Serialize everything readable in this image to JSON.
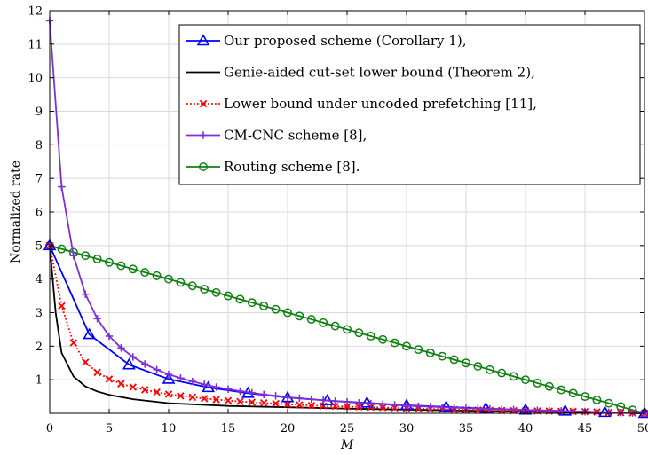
{
  "chart_data": {
    "type": "line",
    "title": "",
    "xlabel": "M",
    "ylabel": "Normalized rate",
    "xlim": [
      0,
      50
    ],
    "ylim": [
      0,
      12
    ],
    "xticks": [
      0,
      5,
      10,
      15,
      20,
      25,
      30,
      35,
      40,
      45,
      50
    ],
    "yticks": [
      1,
      2,
      3,
      4,
      5,
      6,
      7,
      8,
      9,
      10,
      11,
      12
    ],
    "grid": true,
    "legend_position": "top-right",
    "series": [
      {
        "name": "Our proposed scheme (Corollary 1),",
        "color": "#0000ff",
        "line_style": "solid",
        "marker": "triangle",
        "x": [
          0,
          3.33,
          6.67,
          10,
          13.33,
          16.67,
          20,
          23.33,
          26.67,
          30,
          33.33,
          36.67,
          40,
          43.33,
          46.67,
          50
        ],
        "y": [
          5.0,
          2.35,
          1.45,
          1.02,
          0.77,
          0.6,
          0.47,
          0.38,
          0.31,
          0.24,
          0.19,
          0.14,
          0.1,
          0.07,
          0.03,
          0.0
        ]
      },
      {
        "name": "Genie-aided cut-set lower bound (Theorem 2),",
        "color": "#000000",
        "line_style": "solid",
        "marker": "none",
        "x": [
          0,
          0.5,
          1,
          2,
          3,
          4,
          5,
          7,
          10,
          15,
          20,
          25,
          30,
          35,
          40,
          45,
          50
        ],
        "y": [
          5.0,
          3.0,
          1.8,
          1.1,
          0.8,
          0.65,
          0.55,
          0.42,
          0.3,
          0.22,
          0.18,
          0.14,
          0.11,
          0.08,
          0.05,
          0.03,
          0.0
        ]
      },
      {
        "name": "Lower bound under uncoded prefetching [11],",
        "color": "#ff0000",
        "line_style": "dotted",
        "marker": "x",
        "x": [
          0,
          1,
          2,
          3,
          4,
          5,
          6,
          7,
          8,
          9,
          10,
          11,
          12,
          13,
          14,
          15,
          16,
          17,
          18,
          19,
          20,
          21,
          22,
          23,
          24,
          25,
          26,
          27,
          28,
          29,
          30,
          31,
          32,
          33,
          34,
          35,
          36,
          37,
          38,
          39,
          40,
          41,
          42,
          43,
          44,
          45,
          46,
          47,
          48,
          49,
          50
        ],
        "y": [
          5.0,
          3.2,
          2.1,
          1.52,
          1.22,
          1.02,
          0.88,
          0.78,
          0.7,
          0.63,
          0.57,
          0.52,
          0.48,
          0.44,
          0.41,
          0.38,
          0.35,
          0.33,
          0.31,
          0.29,
          0.27,
          0.25,
          0.23,
          0.22,
          0.21,
          0.2,
          0.19,
          0.18,
          0.17,
          0.16,
          0.15,
          0.14,
          0.13,
          0.12,
          0.11,
          0.1,
          0.095,
          0.09,
          0.085,
          0.08,
          0.075,
          0.07,
          0.065,
          0.06,
          0.055,
          0.05,
          0.04,
          0.03,
          0.02,
          0.01,
          0.0
        ]
      },
      {
        "name": "CM-CNC scheme [8],",
        "color": "#7e2fd8",
        "line_style": "solid",
        "marker": "plus",
        "x": [
          0,
          1,
          2,
          3,
          4,
          5,
          6,
          7,
          8,
          9,
          10,
          11,
          12,
          13,
          14,
          15,
          16,
          17,
          18,
          19,
          20,
          21,
          22,
          23,
          24,
          25,
          26,
          27,
          28,
          29,
          30,
          31,
          32,
          33,
          34,
          35,
          36,
          37,
          38,
          39,
          40,
          41,
          42,
          43,
          44,
          45,
          46,
          47,
          48,
          49,
          50
        ],
        "y": [
          11.7,
          6.75,
          4.7,
          3.55,
          2.82,
          2.3,
          1.95,
          1.68,
          1.47,
          1.3,
          1.16,
          1.05,
          0.95,
          0.86,
          0.78,
          0.72,
          0.66,
          0.61,
          0.56,
          0.52,
          0.48,
          0.45,
          0.42,
          0.39,
          0.36,
          0.34,
          0.31,
          0.29,
          0.27,
          0.25,
          0.23,
          0.21,
          0.2,
          0.18,
          0.17,
          0.15,
          0.14,
          0.13,
          0.12,
          0.11,
          0.1,
          0.09,
          0.08,
          0.07,
          0.06,
          0.05,
          0.04,
          0.03,
          0.02,
          0.01,
          0.0
        ]
      },
      {
        "name": "Routing scheme [8].",
        "color": "#108010",
        "line_style": "solid",
        "marker": "circle",
        "x": [
          0,
          1,
          2,
          3,
          4,
          5,
          6,
          7,
          8,
          9,
          10,
          11,
          12,
          13,
          14,
          15,
          16,
          17,
          18,
          19,
          20,
          21,
          22,
          23,
          24,
          25,
          26,
          27,
          28,
          29,
          30,
          31,
          32,
          33,
          34,
          35,
          36,
          37,
          38,
          39,
          40,
          41,
          42,
          43,
          44,
          45,
          46,
          47,
          48,
          49,
          50
        ],
        "y": [
          5.0,
          4.9,
          4.8,
          4.7,
          4.6,
          4.5,
          4.4,
          4.3,
          4.2,
          4.1,
          4.0,
          3.9,
          3.8,
          3.7,
          3.6,
          3.5,
          3.4,
          3.3,
          3.2,
          3.1,
          3.0,
          2.9,
          2.8,
          2.7,
          2.6,
          2.5,
          2.4,
          2.3,
          2.2,
          2.1,
          2.0,
          1.9,
          1.8,
          1.7,
          1.6,
          1.5,
          1.4,
          1.3,
          1.2,
          1.1,
          1.0,
          0.9,
          0.8,
          0.7,
          0.6,
          0.5,
          0.4,
          0.3,
          0.2,
          0.1,
          0.0
        ]
      }
    ]
  }
}
